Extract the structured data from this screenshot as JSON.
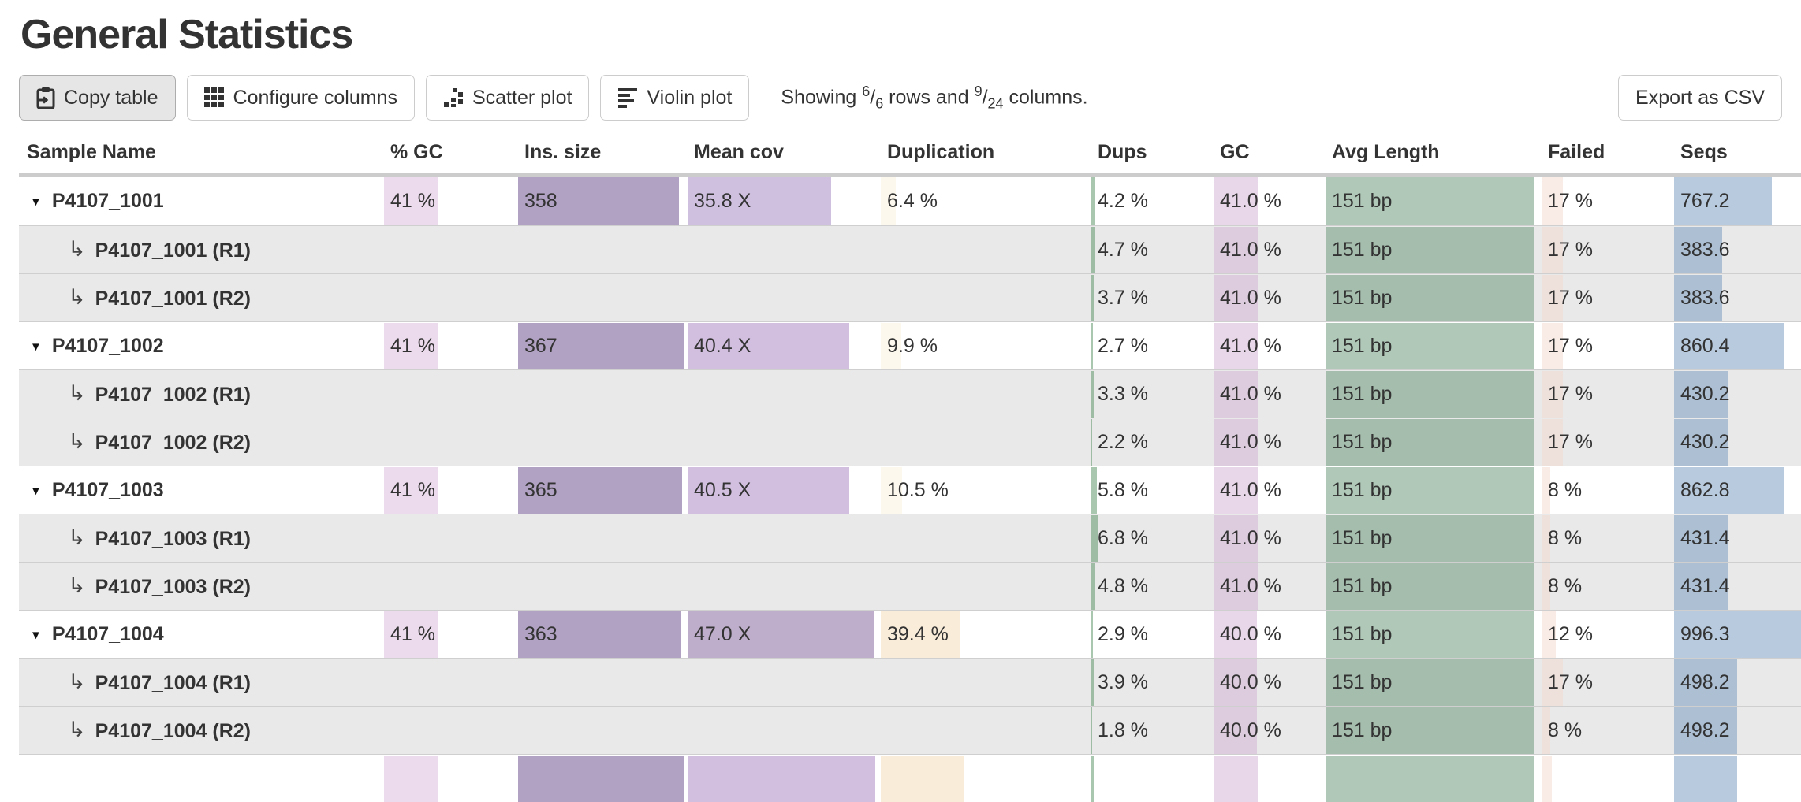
{
  "page": {
    "title": "General Statistics"
  },
  "toolbar": {
    "buttons": [
      {
        "id": "copy-table",
        "label": "Copy table",
        "icon": "clipboard-icon",
        "active": true
      },
      {
        "id": "configure-columns",
        "label": "Configure columns",
        "icon": "grid-icon",
        "active": false
      },
      {
        "id": "scatter-plot",
        "label": "Scatter plot",
        "icon": "scatter-icon",
        "active": false
      },
      {
        "id": "violin-plot",
        "label": "Violin plot",
        "icon": "violin-icon",
        "active": false
      }
    ],
    "showing": {
      "before": "Showing",
      "rows_num": "6",
      "rows_den": "6",
      "mid": "rows and",
      "cols_num": "9",
      "cols_den": "24",
      "after": "columns."
    },
    "export_label": "Export as CSV"
  },
  "colors": {
    "gc_pct": "rgba(217,183,219,0.5)",
    "ins": "rgba(99,69,135,0.5)",
    "mc_low": "rgba(159,129,193,0.5)",
    "mc_mid": "rgba(165,127,193,0.5)",
    "mc_high": "rgba(127,93,151,0.5)",
    "dup_low": "rgba(251,241,221,0.5)",
    "dup_high": "rgba(243,217,179,0.5)",
    "dups": "rgba(83,141,95,0.5)",
    "gc": "rgba(209,175,209,0.5)",
    "avg": "rgba(95,145,111,0.5)",
    "failed": "rgba(243,217,207,0.5)",
    "seqs": "rgba(111,149,189,0.5)"
  },
  "table": {
    "columns": [
      "Sample Name",
      "% GC",
      "Ins. size",
      "Mean cov",
      "Duplication",
      "Dups",
      "GC",
      "Avg Length",
      "Failed",
      "Seqs"
    ],
    "rows": [
      {
        "type": "main",
        "name": "P4107_1001",
        "cells": [
          {
            "t": "41 %",
            "f": 0.41,
            "c": "gc_pct"
          },
          {
            "t": "358",
            "f": 0.96,
            "c": "ins"
          },
          {
            "t": "35.8 X",
            "f": 0.75,
            "c": "mc_low"
          },
          {
            "t": "6.4 %",
            "f": 0.08,
            "c": "dup_low"
          },
          {
            "t": "4.2 %",
            "f": 0.042,
            "c": "dups"
          },
          {
            "t": "41.0 %",
            "f": 0.41,
            "c": "gc"
          },
          {
            "t": "151 bp",
            "f": 0.97,
            "c": "avg"
          },
          {
            "t": "17 %",
            "f": 0.17,
            "c": "failed"
          },
          {
            "t": "767.2",
            "f": 0.77,
            "c": "seqs"
          }
        ]
      },
      {
        "type": "sub",
        "name": "P4107_1001 (R1)",
        "cells": [
          null,
          null,
          null,
          null,
          {
            "t": "4.7 %",
            "f": 0.047,
            "c": "dups"
          },
          {
            "t": "41.0 %",
            "f": 0.41,
            "c": "gc"
          },
          {
            "t": "151 bp",
            "f": 0.97,
            "c": "avg"
          },
          {
            "t": "17 %",
            "f": 0.17,
            "c": "failed"
          },
          {
            "t": "383.6",
            "f": 0.385,
            "c": "seqs"
          }
        ]
      },
      {
        "type": "sub",
        "name": "P4107_1001 (R2)",
        "cells": [
          null,
          null,
          null,
          null,
          {
            "t": "3.7 %",
            "f": 0.037,
            "c": "dups"
          },
          {
            "t": "41.0 %",
            "f": 0.41,
            "c": "gc"
          },
          {
            "t": "151 bp",
            "f": 0.97,
            "c": "avg"
          },
          {
            "t": "17 %",
            "f": 0.17,
            "c": "failed"
          },
          {
            "t": "383.6",
            "f": 0.385,
            "c": "seqs"
          }
        ]
      },
      {
        "type": "main",
        "name": "P4107_1002",
        "cells": [
          {
            "t": "41 %",
            "f": 0.41,
            "c": "gc_pct"
          },
          {
            "t": "367",
            "f": 0.985,
            "c": "ins"
          },
          {
            "t": "40.4 X",
            "f": 0.845,
            "c": "mc_mid"
          },
          {
            "t": "9.9 %",
            "f": 0.105,
            "c": "dup_low"
          },
          {
            "t": "2.7 %",
            "f": 0.027,
            "c": "dups"
          },
          {
            "t": "41.0 %",
            "f": 0.41,
            "c": "gc"
          },
          {
            "t": "151 bp",
            "f": 0.97,
            "c": "avg"
          },
          {
            "t": "17 %",
            "f": 0.17,
            "c": "failed"
          },
          {
            "t": "860.4",
            "f": 0.864,
            "c": "seqs"
          }
        ]
      },
      {
        "type": "sub",
        "name": "P4107_1002 (R1)",
        "cells": [
          null,
          null,
          null,
          null,
          {
            "t": "3.3 %",
            "f": 0.033,
            "c": "dups"
          },
          {
            "t": "41.0 %",
            "f": 0.41,
            "c": "gc"
          },
          {
            "t": "151 bp",
            "f": 0.97,
            "c": "avg"
          },
          {
            "t": "17 %",
            "f": 0.17,
            "c": "failed"
          },
          {
            "t": "430.2",
            "f": 0.432,
            "c": "seqs"
          }
        ]
      },
      {
        "type": "sub",
        "name": "P4107_1002 (R2)",
        "cells": [
          null,
          null,
          null,
          null,
          {
            "t": "2.2 %",
            "f": 0.022,
            "c": "dups"
          },
          {
            "t": "41.0 %",
            "f": 0.41,
            "c": "gc"
          },
          {
            "t": "151 bp",
            "f": 0.97,
            "c": "avg"
          },
          {
            "t": "17 %",
            "f": 0.17,
            "c": "failed"
          },
          {
            "t": "430.2",
            "f": 0.432,
            "c": "seqs"
          }
        ]
      },
      {
        "type": "main",
        "name": "P4107_1003",
        "cells": [
          {
            "t": "41 %",
            "f": 0.41,
            "c": "gc_pct"
          },
          {
            "t": "365",
            "f": 0.975,
            "c": "ins"
          },
          {
            "t": "40.5 X",
            "f": 0.845,
            "c": "mc_mid"
          },
          {
            "t": "10.5 %",
            "f": 0.11,
            "c": "dup_low"
          },
          {
            "t": "5.8 %",
            "f": 0.058,
            "c": "dups"
          },
          {
            "t": "41.0 %",
            "f": 0.41,
            "c": "gc"
          },
          {
            "t": "151 bp",
            "f": 0.97,
            "c": "avg"
          },
          {
            "t": "8 %",
            "f": 0.08,
            "c": "failed"
          },
          {
            "t": "862.8",
            "f": 0.866,
            "c": "seqs"
          }
        ]
      },
      {
        "type": "sub",
        "name": "P4107_1003 (R1)",
        "cells": [
          null,
          null,
          null,
          null,
          {
            "t": "6.8 %",
            "f": 0.068,
            "c": "dups"
          },
          {
            "t": "41.0 %",
            "f": 0.41,
            "c": "gc"
          },
          {
            "t": "151 bp",
            "f": 0.97,
            "c": "avg"
          },
          {
            "t": "8 %",
            "f": 0.08,
            "c": "failed"
          },
          {
            "t": "431.4",
            "f": 0.433,
            "c": "seqs"
          }
        ]
      },
      {
        "type": "sub",
        "name": "P4107_1003 (R2)",
        "cells": [
          null,
          null,
          null,
          null,
          {
            "t": "4.8 %",
            "f": 0.048,
            "c": "dups"
          },
          {
            "t": "41.0 %",
            "f": 0.41,
            "c": "gc"
          },
          {
            "t": "151 bp",
            "f": 0.97,
            "c": "avg"
          },
          {
            "t": "8 %",
            "f": 0.08,
            "c": "failed"
          },
          {
            "t": "431.4",
            "f": 0.433,
            "c": "seqs"
          }
        ]
      },
      {
        "type": "main",
        "name": "P4107_1004",
        "cells": [
          {
            "t": "41 %",
            "f": 0.41,
            "c": "gc_pct"
          },
          {
            "t": "363",
            "f": 0.97,
            "c": "ins"
          },
          {
            "t": "47.0 X",
            "f": 0.97,
            "c": "mc_high"
          },
          {
            "t": "39.4 %",
            "f": 0.385,
            "c": "dup_high"
          },
          {
            "t": "2.9 %",
            "f": 0.029,
            "c": "dups"
          },
          {
            "t": "40.0 %",
            "f": 0.4,
            "c": "gc"
          },
          {
            "t": "151 bp",
            "f": 0.97,
            "c": "avg"
          },
          {
            "t": "12 %",
            "f": 0.12,
            "c": "failed"
          },
          {
            "t": "996.3",
            "f": 1.0,
            "c": "seqs"
          }
        ]
      },
      {
        "type": "sub",
        "name": "P4107_1004 (R1)",
        "cells": [
          null,
          null,
          null,
          null,
          {
            "t": "3.9 %",
            "f": 0.039,
            "c": "dups"
          },
          {
            "t": "40.0 %",
            "f": 0.4,
            "c": "gc"
          },
          {
            "t": "151 bp",
            "f": 0.97,
            "c": "avg"
          },
          {
            "t": "17 %",
            "f": 0.17,
            "c": "failed"
          },
          {
            "t": "498.2",
            "f": 0.5,
            "c": "seqs"
          }
        ]
      },
      {
        "type": "sub",
        "name": "P4107_1004 (R2)",
        "cells": [
          null,
          null,
          null,
          null,
          {
            "t": "1.8 %",
            "f": 0.018,
            "c": "dups"
          },
          {
            "t": "40.0 %",
            "f": 0.4,
            "c": "gc"
          },
          {
            "t": "151 bp",
            "f": 0.97,
            "c": "avg"
          },
          {
            "t": "8 %",
            "f": 0.08,
            "c": "failed"
          },
          {
            "t": "498.2",
            "f": 0.5,
            "c": "seqs"
          }
        ]
      },
      {
        "type": "sliver",
        "name": "",
        "cells": [
          {
            "t": "",
            "f": 0.41,
            "c": "gc_pct"
          },
          {
            "t": "",
            "f": 0.985,
            "c": "ins"
          },
          {
            "t": "",
            "f": 0.98,
            "c": "mc_mid"
          },
          {
            "t": "",
            "f": 0.4,
            "c": "dup_high"
          },
          {
            "t": "",
            "f": 0.03,
            "c": "dups"
          },
          {
            "t": "",
            "f": 0.41,
            "c": "gc"
          },
          {
            "t": "",
            "f": 0.97,
            "c": "avg"
          },
          {
            "t": "",
            "f": 0.09,
            "c": "failed"
          },
          {
            "t": "",
            "f": 0.5,
            "c": "seqs"
          }
        ]
      }
    ]
  }
}
